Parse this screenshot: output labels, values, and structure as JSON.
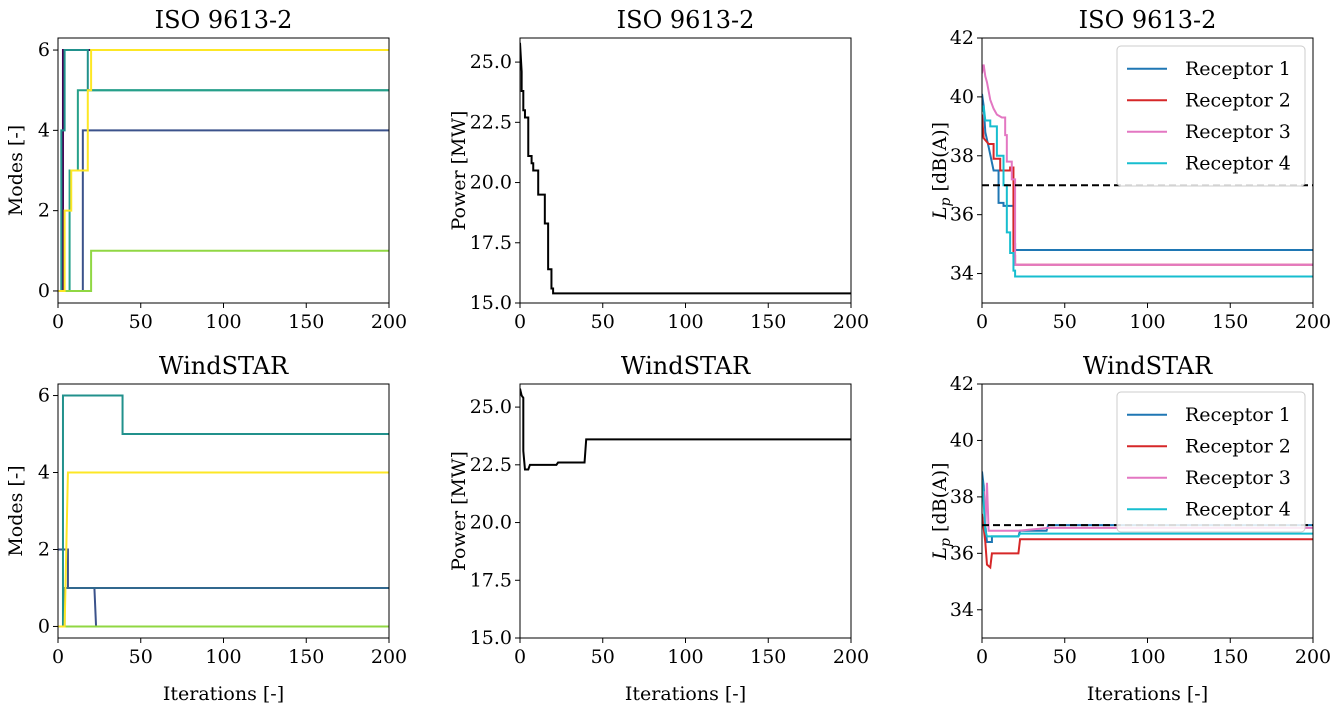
{
  "chart_data": [
    {
      "id": "modes_iso",
      "type": "line",
      "title": "ISO 9613-2",
      "xlabel": "",
      "ylabel": "Modes [-]",
      "xlim": [
        0,
        200
      ],
      "ylim": [
        -0.3,
        6.3
      ],
      "xticks": [
        0,
        50,
        100,
        150,
        200
      ],
      "yticks": [
        0,
        2,
        4,
        6
      ],
      "series": [
        {
          "color": "#440154",
          "points": [
            [
              0,
              0
            ],
            [
              3,
              0
            ],
            [
              3,
              6
            ],
            [
              200,
              6
            ]
          ]
        },
        {
          "color": "#3b528b",
          "points": [
            [
              0,
              0
            ],
            [
              15,
              0
            ],
            [
              15,
              4
            ],
            [
              200,
              4
            ]
          ]
        },
        {
          "color": "#21918c",
          "points": [
            [
              0,
              0
            ],
            [
              2,
              0
            ],
            [
              2,
              4
            ],
            [
              4,
              4
            ],
            [
              4,
              6
            ],
            [
              18,
              6
            ],
            [
              18,
              5
            ],
            [
              200,
              5
            ]
          ]
        },
        {
          "color": "#26a08a",
          "points": [
            [
              0,
              0
            ],
            [
              7,
              0
            ],
            [
              7,
              3
            ],
            [
              12,
              3
            ],
            [
              12,
              5
            ],
            [
              200,
              5
            ]
          ]
        },
        {
          "color": "#90d743",
          "points": [
            [
              0,
              0
            ],
            [
              20,
              0
            ],
            [
              20,
              1
            ],
            [
              200,
              1
            ]
          ]
        },
        {
          "color": "#fde725",
          "points": [
            [
              0,
              0
            ],
            [
              4,
              0
            ],
            [
              4,
              2
            ],
            [
              8,
              2
            ],
            [
              8,
              3
            ],
            [
              18,
              3
            ],
            [
              18,
              5
            ],
            [
              20,
              5
            ],
            [
              20,
              6
            ],
            [
              200,
              6
            ]
          ]
        }
      ]
    },
    {
      "id": "power_iso",
      "type": "line",
      "title": "ISO 9613-2",
      "xlabel": "",
      "ylabel": "Power [MW]",
      "xlim": [
        0,
        200
      ],
      "ylim": [
        15.0,
        26.0
      ],
      "xticks": [
        0,
        50,
        100,
        150,
        200
      ],
      "yticks": [
        15.0,
        17.5,
        20.0,
        22.5,
        25.0
      ],
      "ytick_labels": [
        "15.0",
        "17.5",
        "20.0",
        "22.5",
        "25.0"
      ],
      "series": [
        {
          "color": "#000000",
          "points": [
            [
              0,
              25.8
            ],
            [
              1,
              24.6
            ],
            [
              1,
              23.8
            ],
            [
              2,
              23.8
            ],
            [
              2,
              23.0
            ],
            [
              3,
              23.0
            ],
            [
              3,
              22.7
            ],
            [
              5,
              22.7
            ],
            [
              5,
              21.1
            ],
            [
              7,
              21.1
            ],
            [
              7,
              20.8
            ],
            [
              8,
              20.8
            ],
            [
              8,
              20.5
            ],
            [
              11,
              20.5
            ],
            [
              11,
              19.5
            ],
            [
              15,
              19.5
            ],
            [
              15,
              18.3
            ],
            [
              17,
              18.3
            ],
            [
              17,
              16.4
            ],
            [
              19,
              16.4
            ],
            [
              19,
              15.6
            ],
            [
              20,
              15.6
            ],
            [
              20,
              15.4
            ],
            [
              200,
              15.4
            ]
          ]
        }
      ]
    },
    {
      "id": "lp_iso",
      "type": "line",
      "title": "ISO 9613-2",
      "xlabel": "",
      "ylabel": "L_p [dB(A)]",
      "xlim": [
        0,
        200
      ],
      "ylim": [
        33.0,
        42.0
      ],
      "xticks": [
        0,
        50,
        100,
        150,
        200
      ],
      "yticks": [
        34,
        36,
        38,
        40,
        42
      ],
      "legend": {
        "location": "top-right"
      },
      "reference_line": {
        "y": 37.0,
        "style": "dashed",
        "color": "#000000"
      },
      "series": [
        {
          "name": "Receptor 1",
          "color": "#1f77b4",
          "points": [
            [
              0,
              40.1
            ],
            [
              1,
              39.7
            ],
            [
              2,
              38.8
            ],
            [
              4,
              38.3
            ],
            [
              7,
              37.5
            ],
            [
              10,
              37.5
            ],
            [
              10,
              36.4
            ],
            [
              13,
              36.4
            ],
            [
              13,
              36.3
            ],
            [
              19,
              36.3
            ],
            [
              19,
              35.0
            ],
            [
              20,
              35.0
            ],
            [
              20,
              34.8
            ],
            [
              200,
              34.8
            ]
          ]
        },
        {
          "name": "Receptor 2",
          "color": "#d62728",
          "points": [
            [
              0,
              39.4
            ],
            [
              1,
              38.6
            ],
            [
              4,
              38.4
            ],
            [
              7,
              38.4
            ],
            [
              7,
              37.9
            ],
            [
              11,
              37.9
            ],
            [
              11,
              37.5
            ],
            [
              17,
              37.5
            ],
            [
              17,
              37.6
            ],
            [
              19,
              37.6
            ],
            [
              19,
              34.6
            ],
            [
              20,
              34.6
            ],
            [
              20,
              34.3
            ],
            [
              200,
              34.3
            ]
          ]
        },
        {
          "name": "Receptor 3",
          "color": "#e377c2",
          "points": [
            [
              0,
              40.8
            ],
            [
              1,
              41.1
            ],
            [
              2,
              40.7
            ],
            [
              3,
              40.5
            ],
            [
              5,
              39.9
            ],
            [
              7,
              39.6
            ],
            [
              9,
              39.4
            ],
            [
              12,
              39.3
            ],
            [
              14,
              39.3
            ],
            [
              14,
              38.7
            ],
            [
              15,
              38.7
            ],
            [
              15,
              37.8
            ],
            [
              18,
              37.8
            ],
            [
              18,
              37.2
            ],
            [
              20,
              37.2
            ],
            [
              20,
              34.3
            ],
            [
              200,
              34.3
            ]
          ]
        },
        {
          "name": "Receptor 4",
          "color": "#17becf",
          "points": [
            [
              0,
              39.5
            ],
            [
              1,
              39.7
            ],
            [
              2,
              39.2
            ],
            [
              5,
              39.2
            ],
            [
              5,
              39.0
            ],
            [
              9,
              39.0
            ],
            [
              9,
              38.0
            ],
            [
              13,
              38.0
            ],
            [
              13,
              37.0
            ],
            [
              15,
              37.0
            ],
            [
              15,
              35.4
            ],
            [
              17,
              35.4
            ],
            [
              17,
              34.7
            ],
            [
              19,
              34.7
            ],
            [
              19,
              34.1
            ],
            [
              20,
              34.1
            ],
            [
              20,
              33.9
            ],
            [
              200,
              33.9
            ]
          ]
        }
      ]
    },
    {
      "id": "modes_ws",
      "type": "line",
      "title": "WindSTAR",
      "xlabel": "Iterations [-]",
      "ylabel": "Modes [-]",
      "xlim": [
        0,
        200
      ],
      "ylim": [
        -0.3,
        6.3
      ],
      "xticks": [
        0,
        50,
        100,
        150,
        200
      ],
      "yticks": [
        0,
        2,
        4,
        6
      ],
      "series": [
        {
          "color": "#440154",
          "points": [
            [
              0,
              0
            ],
            [
              200,
              0
            ]
          ]
        },
        {
          "color": "#3b528b",
          "points": [
            [
              0,
              2
            ],
            [
              6,
              2
            ],
            [
              6,
              1
            ],
            [
              22,
              1
            ],
            [
              23,
              0
            ],
            [
              200,
              0
            ]
          ]
        },
        {
          "color": "#31688e",
          "points": [
            [
              0,
              0
            ],
            [
              4,
              0
            ],
            [
              4,
              1
            ],
            [
              200,
              1
            ]
          ]
        },
        {
          "color": "#21918c",
          "points": [
            [
              0,
              0
            ],
            [
              3,
              0
            ],
            [
              3,
              6
            ],
            [
              39,
              6
            ],
            [
              39,
              5
            ],
            [
              200,
              5
            ]
          ]
        },
        {
          "color": "#90d743",
          "points": [
            [
              0,
              0
            ],
            [
              200,
              0
            ]
          ]
        },
        {
          "color": "#fde725",
          "points": [
            [
              0,
              0
            ],
            [
              4,
              0
            ],
            [
              6,
              4
            ],
            [
              200,
              4
            ]
          ]
        }
      ]
    },
    {
      "id": "power_ws",
      "type": "line",
      "title": "WindSTAR",
      "xlabel": "Iterations [-]",
      "ylabel": "Power [MW]",
      "xlim": [
        0,
        200
      ],
      "ylim": [
        15.0,
        26.0
      ],
      "xticks": [
        0,
        50,
        100,
        150,
        200
      ],
      "yticks": [
        15.0,
        17.5,
        20.0,
        22.5,
        25.0
      ],
      "ytick_labels": [
        "15.0",
        "17.5",
        "20.0",
        "22.5",
        "25.0"
      ],
      "series": [
        {
          "color": "#000000",
          "points": [
            [
              0,
              25.8
            ],
            [
              1,
              25.5
            ],
            [
              2,
              25.4
            ],
            [
              2,
              23.1
            ],
            [
              3,
              22.3
            ],
            [
              5,
              22.3
            ],
            [
              6,
              22.5
            ],
            [
              22,
              22.5
            ],
            [
              23,
              22.6
            ],
            [
              39,
              22.6
            ],
            [
              40,
              23.6
            ],
            [
              200,
              23.6
            ]
          ]
        }
      ]
    },
    {
      "id": "lp_ws",
      "type": "line",
      "title": "WindSTAR",
      "xlabel": "Iterations [-]",
      "ylabel": "L_p [dB(A)]",
      "xlim": [
        0,
        200
      ],
      "ylim": [
        33.0,
        42.0
      ],
      "xticks": [
        0,
        50,
        100,
        150,
        200
      ],
      "yticks": [
        34,
        36,
        38,
        40,
        42
      ],
      "legend": {
        "location": "top-right"
      },
      "reference_line": {
        "y": 37.0,
        "style": "dashed",
        "color": "#000000"
      },
      "series": [
        {
          "name": "Receptor 1",
          "color": "#1f77b4",
          "points": [
            [
              0,
              38.9
            ],
            [
              1,
              38.4
            ],
            [
              2,
              37.0
            ],
            [
              3,
              36.4
            ],
            [
              6,
              36.4
            ],
            [
              6,
              36.6
            ],
            [
              22,
              36.6
            ],
            [
              23,
              36.8
            ],
            [
              39,
              36.8
            ],
            [
              40,
              37.0
            ],
            [
              200,
              37.0
            ]
          ]
        },
        {
          "name": "Receptor 2",
          "color": "#d62728",
          "points": [
            [
              0,
              37.4
            ],
            [
              2,
              36.4
            ],
            [
              3,
              35.6
            ],
            [
              5,
              35.5
            ],
            [
              6,
              36.0
            ],
            [
              22,
              36.0
            ],
            [
              23,
              36.5
            ],
            [
              39,
              36.5
            ],
            [
              40,
              36.5
            ],
            [
              200,
              36.5
            ]
          ]
        },
        {
          "name": "Receptor 3",
          "color": "#e377c2",
          "points": [
            [
              0,
              38.0
            ],
            [
              1,
              38.2
            ],
            [
              2,
              36.9
            ],
            [
              3,
              38.5
            ],
            [
              4,
              36.8
            ],
            [
              6,
              36.8
            ],
            [
              22,
              36.8
            ],
            [
              40,
              36.9
            ],
            [
              200,
              36.9
            ]
          ]
        },
        {
          "name": "Receptor 4",
          "color": "#17becf",
          "points": [
            [
              0,
              38.6
            ],
            [
              1,
              37.8
            ],
            [
              2,
              36.8
            ],
            [
              3,
              36.6
            ],
            [
              22,
              36.6
            ],
            [
              23,
              36.7
            ],
            [
              200,
              36.7
            ]
          ]
        }
      ]
    }
  ]
}
